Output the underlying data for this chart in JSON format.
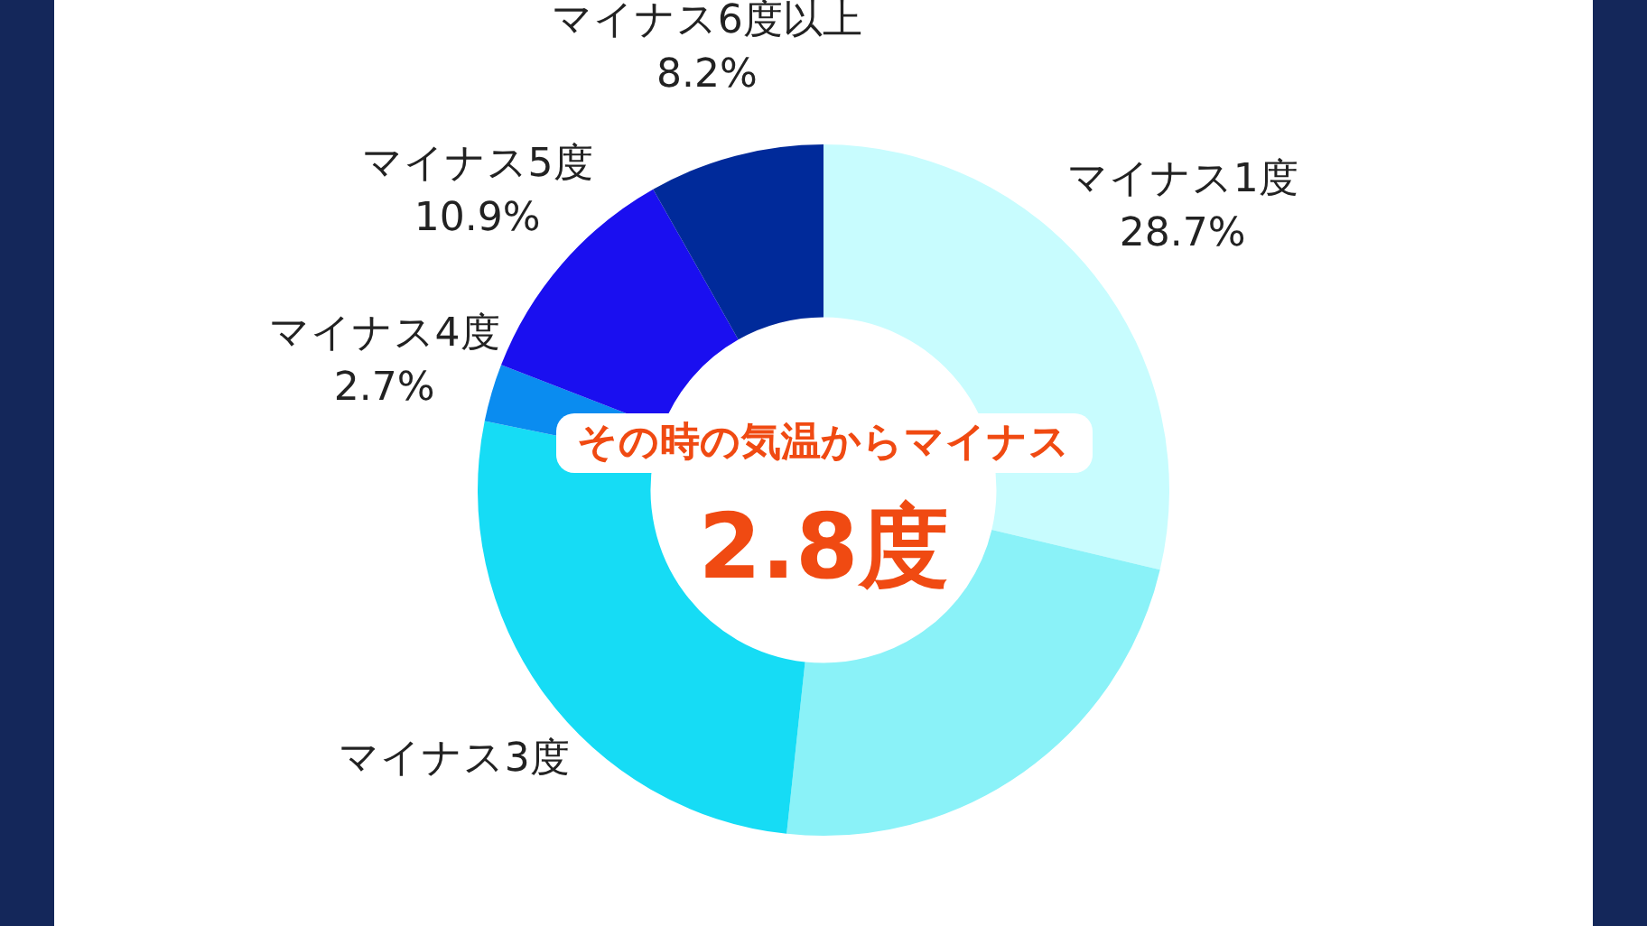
{
  "chart_data": {
    "type": "donut",
    "title": "その時の気温からマイナス",
    "subtitle": "2.8度",
    "categories": [
      "マイナス1度",
      null,
      "マイナス3度",
      "マイナス4度",
      "マイナス5度",
      "マイナス6度以上"
    ],
    "values": [
      28.7,
      23.0,
      26.5,
      2.7,
      10.9,
      8.2
    ],
    "colors": [
      "#c8fcfe",
      "#8af2f8",
      "#16dcf5",
      "#0a8cf0",
      "#1a0ff0",
      "#002a9a"
    ],
    "value_labels": [
      "28.7%",
      null,
      null,
      "2.7%",
      "10.9%",
      "8.2%"
    ],
    "legend": false
  }
}
